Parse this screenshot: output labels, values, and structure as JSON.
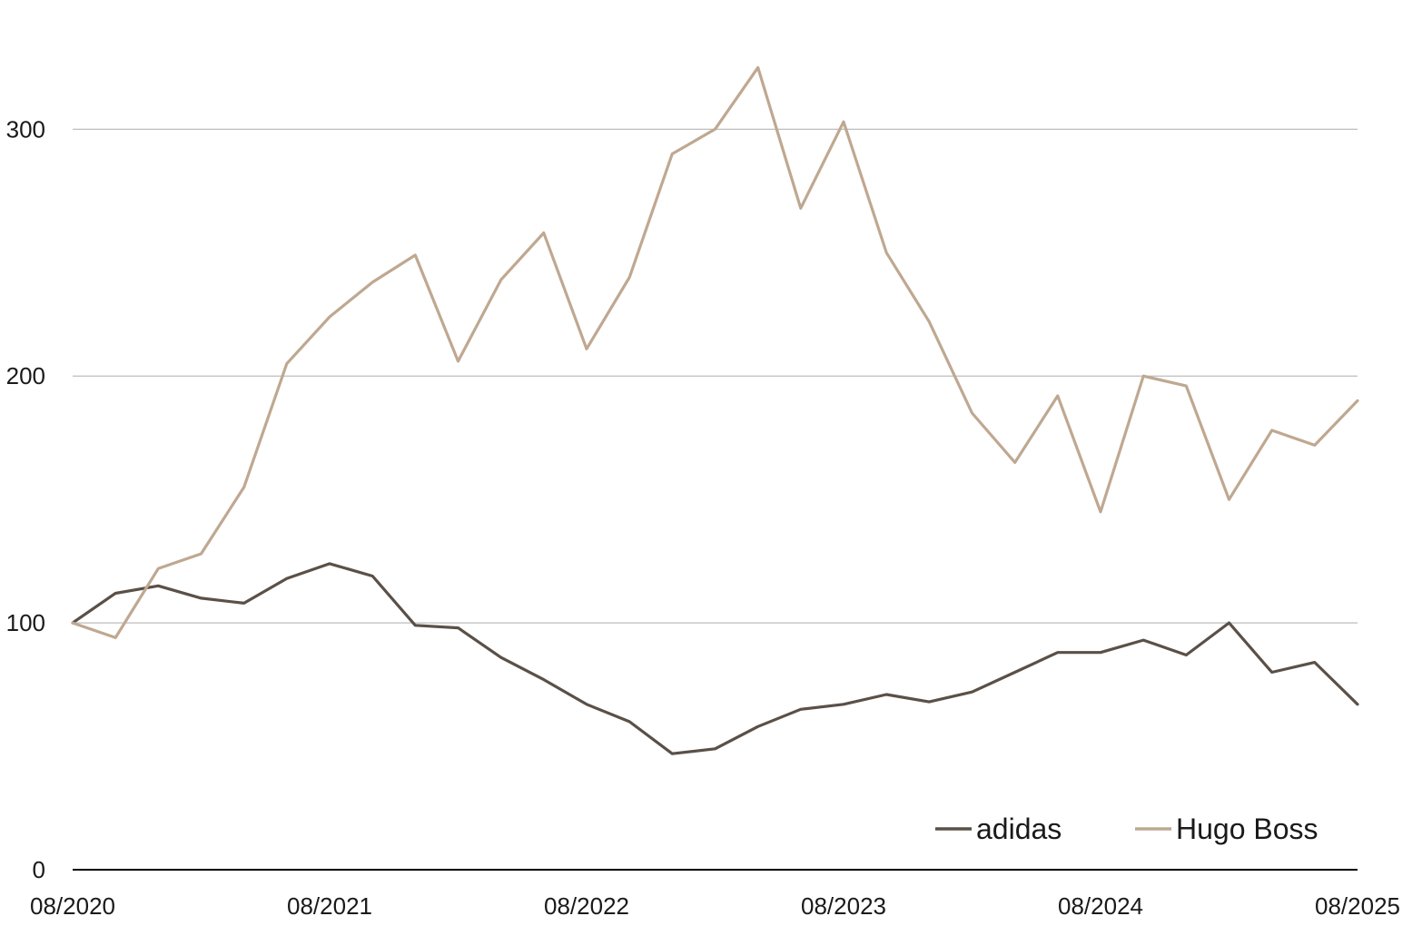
{
  "chart_data": {
    "type": "line",
    "title": "",
    "xlabel": "",
    "ylabel": "",
    "ylim": [
      0,
      345
    ],
    "y_ticks": [
      "0",
      "100",
      "200",
      "300"
    ],
    "grid": "horizontal",
    "legend_placement": "bottom-right",
    "x_tick_labels": [
      "08/2020",
      "08/2021",
      "08/2022",
      "08/2023",
      "08/2024",
      "08/2025"
    ],
    "x": [
      "2020-08",
      "2020-10",
      "2020-12",
      "2021-02",
      "2021-04",
      "2021-06",
      "2021-08",
      "2021-10",
      "2021-12",
      "2022-02",
      "2022-04",
      "2022-06",
      "2022-08",
      "2022-10",
      "2022-12",
      "2023-02",
      "2023-04",
      "2023-06",
      "2023-08",
      "2023-10",
      "2023-12",
      "2024-02",
      "2024-04",
      "2024-06",
      "2024-08",
      "2024-10",
      "2024-12",
      "2025-02",
      "2025-04",
      "2025-06",
      "2025-08"
    ],
    "series": [
      {
        "name": "adidas",
        "color": "#5a5047",
        "values": [
          100,
          112,
          115,
          110,
          108,
          118,
          124,
          119,
          99,
          98,
          86,
          77,
          67,
          60,
          47,
          49,
          58,
          65,
          67,
          71,
          68,
          72,
          80,
          88,
          88,
          93,
          87,
          100,
          80,
          84,
          67
        ]
      },
      {
        "name": "Hugo Boss",
        "color": "#bfa891",
        "values": [
          100,
          94,
          122,
          128,
          155,
          205,
          224,
          238,
          249,
          206,
          239,
          258,
          211,
          240,
          290,
          300,
          325,
          268,
          303,
          250,
          222,
          185,
          165,
          192,
          145,
          200,
          196,
          150,
          178,
          172,
          190
        ]
      }
    ]
  }
}
